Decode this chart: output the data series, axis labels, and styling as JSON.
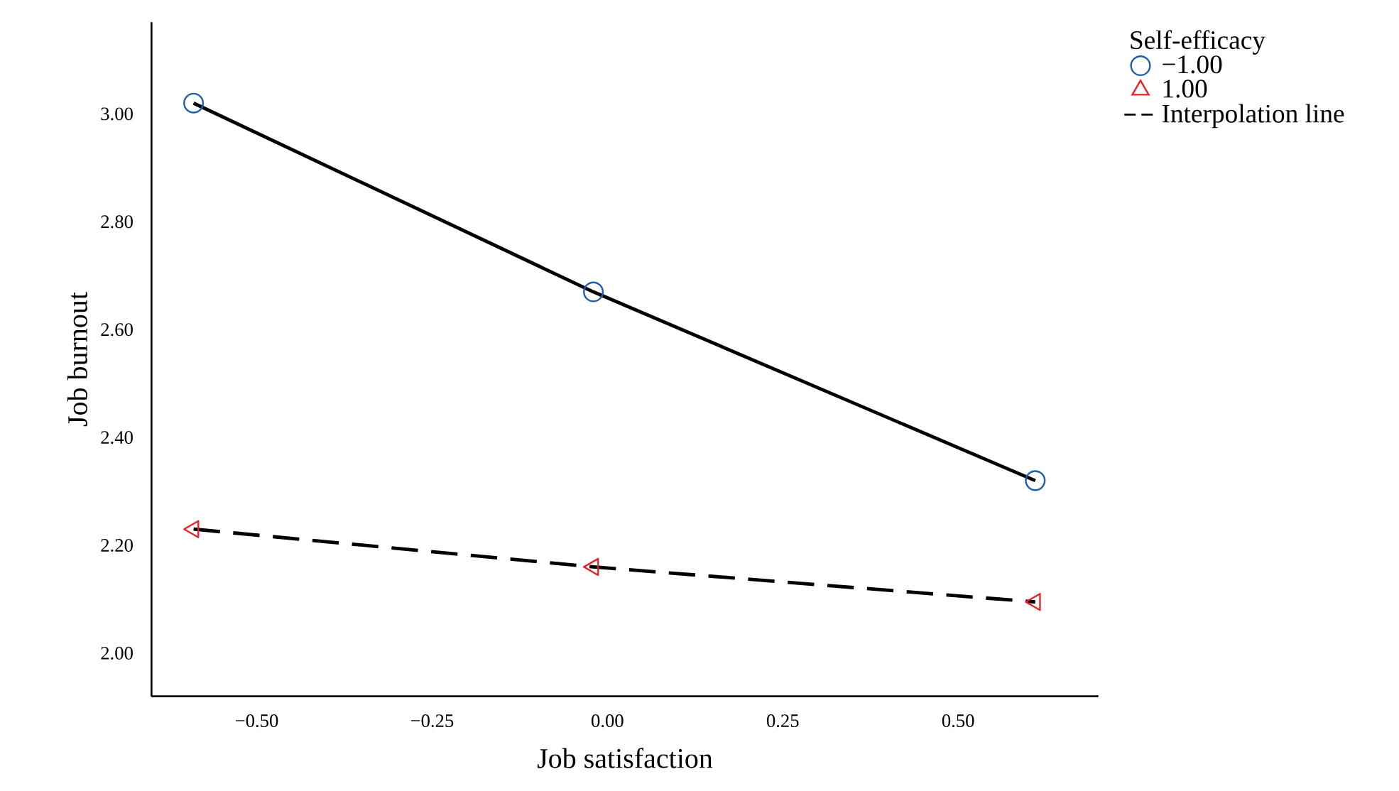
{
  "chart_data": {
    "type": "line",
    "xlabel": "Job satisfaction",
    "ylabel": "Job burnout",
    "legend_title": "Self-efficacy",
    "legend": "top right",
    "x": [
      -0.59,
      -0.02,
      0.61
    ],
    "series": [
      {
        "name": "−1.00",
        "color": "#1f5fa8",
        "marker": "circle",
        "line_style": "solid",
        "values": [
          3.02,
          2.67,
          2.32
        ]
      },
      {
        "name": "1.00",
        "color": "#e0262b",
        "marker": "triangle",
        "line_style": "dashed",
        "values": [
          2.23,
          2.16,
          2.095
        ]
      }
    ],
    "annotations": [
      "Interpolation line"
    ],
    "xlim": [
      -0.65,
      0.7
    ],
    "ylim": [
      1.92,
      3.17
    ],
    "xticks": [
      {
        "value": -0.5,
        "label": "−0.50"
      },
      {
        "value": -0.25,
        "label": "−0.25"
      },
      {
        "value": 0,
        "label": "0.00"
      },
      {
        "value": 0.25,
        "label": "0.25"
      },
      {
        "value": 0.5,
        "label": "0.50"
      }
    ],
    "yticks": [
      {
        "value": 2.0,
        "label": "2.00"
      },
      {
        "value": 2.2,
        "label": "2.20"
      },
      {
        "value": 2.4,
        "label": "2.40"
      },
      {
        "value": 2.6,
        "label": "2.60"
      },
      {
        "value": 2.8,
        "label": "2.80"
      },
      {
        "value": 3.0,
        "label": "3.00"
      }
    ]
  }
}
